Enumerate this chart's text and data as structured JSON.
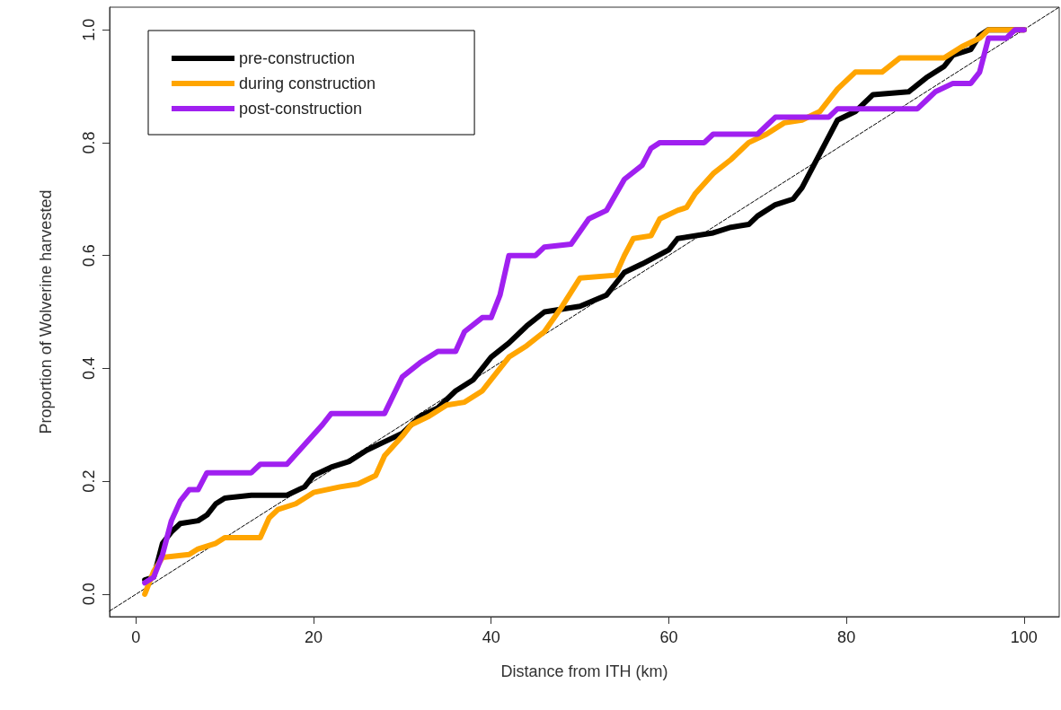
{
  "chart_data": {
    "type": "line",
    "xlabel": "Distance from ITH (km)",
    "ylabel": "Proportion of Wolverine harvested",
    "xlim": [
      -2.96,
      103.96
    ],
    "ylim": [
      -0.04,
      1.04
    ],
    "xticks": [
      0,
      20,
      40,
      60,
      80,
      100
    ],
    "yticks": [
      {
        "value": 0,
        "label": "0.0"
      },
      {
        "value": 0.2,
        "label": "0.2"
      },
      {
        "value": 0.4,
        "label": "0.4"
      },
      {
        "value": 0.6,
        "label": "0.6"
      },
      {
        "value": 0.8,
        "label": "0.8"
      },
      {
        "value": 1,
        "label": "1.0"
      }
    ],
    "grid": false,
    "legend": "top left",
    "marker": "none",
    "line_style": "solid",
    "series": [
      {
        "name": "pre-construction",
        "color": "#000000",
        "x": [
          1,
          2,
          3,
          4,
          5,
          7,
          8,
          9,
          10,
          13,
          17,
          19,
          20,
          22,
          24,
          26,
          28,
          30,
          32,
          34,
          36,
          38,
          40,
          42,
          44,
          46,
          50,
          53,
          55,
          57,
          60,
          61,
          65,
          67,
          69,
          70,
          72,
          74,
          75,
          77,
          79,
          81,
          83,
          87,
          89,
          91,
          92,
          94,
          95,
          96,
          100
        ],
        "values": [
          0.025,
          0.03,
          0.09,
          0.11,
          0.125,
          0.13,
          0.14,
          0.16,
          0.17,
          0.175,
          0.175,
          0.19,
          0.21,
          0.225,
          0.235,
          0.255,
          0.27,
          0.285,
          0.315,
          0.33,
          0.36,
          0.38,
          0.42,
          0.445,
          0.475,
          0.5,
          0.51,
          0.53,
          0.57,
          0.585,
          0.61,
          0.63,
          0.64,
          0.65,
          0.655,
          0.67,
          0.69,
          0.7,
          0.72,
          0.78,
          0.84,
          0.855,
          0.885,
          0.89,
          0.915,
          0.935,
          0.955,
          0.965,
          0.99,
          1.0,
          1.0
        ]
      },
      {
        "name": "during construction",
        "color": "#ffa500",
        "x": [
          1,
          2,
          3,
          6,
          7,
          9,
          10,
          14,
          15,
          16,
          18,
          20,
          23,
          25,
          27,
          28,
          30,
          31,
          33,
          35,
          37,
          39,
          40,
          42,
          44,
          46,
          48,
          50,
          54,
          55,
          56,
          58,
          59,
          61,
          62,
          63,
          65,
          67,
          69,
          71,
          73,
          75,
          77,
          79,
          81,
          84,
          86,
          91,
          93,
          95,
          96,
          100
        ],
        "values": [
          0.0,
          0.04,
          0.065,
          0.07,
          0.08,
          0.09,
          0.1,
          0.1,
          0.135,
          0.15,
          0.16,
          0.18,
          0.19,
          0.195,
          0.21,
          0.245,
          0.28,
          0.3,
          0.315,
          0.335,
          0.34,
          0.36,
          0.38,
          0.42,
          0.44,
          0.465,
          0.51,
          0.56,
          0.565,
          0.6,
          0.63,
          0.635,
          0.665,
          0.68,
          0.685,
          0.71,
          0.745,
          0.77,
          0.8,
          0.815,
          0.835,
          0.84,
          0.855,
          0.895,
          0.925,
          0.925,
          0.95,
          0.95,
          0.97,
          0.985,
          1.0,
          1.0
        ]
      },
      {
        "name": "post-construction",
        "color": "#a020f0",
        "x": [
          1,
          2,
          3,
          4,
          5,
          6,
          7,
          8,
          13,
          14,
          17,
          19,
          21,
          22,
          28,
          30,
          32,
          34,
          36,
          37,
          39,
          40,
          41,
          42,
          45,
          46,
          49,
          51,
          53,
          55,
          57,
          58,
          59,
          64,
          65,
          70,
          71,
          72,
          78,
          79,
          88,
          89,
          90,
          92,
          94,
          95,
          96,
          98,
          99,
          100
        ],
        "values": [
          0.02,
          0.03,
          0.07,
          0.13,
          0.165,
          0.185,
          0.185,
          0.215,
          0.215,
          0.23,
          0.23,
          0.265,
          0.3,
          0.32,
          0.32,
          0.385,
          0.41,
          0.43,
          0.43,
          0.465,
          0.49,
          0.49,
          0.53,
          0.6,
          0.6,
          0.615,
          0.62,
          0.665,
          0.68,
          0.735,
          0.76,
          0.79,
          0.8,
          0.8,
          0.815,
          0.815,
          0.83,
          0.845,
          0.845,
          0.86,
          0.86,
          0.875,
          0.89,
          0.905,
          0.905,
          0.925,
          0.985,
          0.985,
          1.0,
          1.0
        ]
      },
      {
        "color": "#000000",
        "line_style": "dashed",
        "x": [
          -2.96,
          103.96
        ],
        "values": [
          -0.03,
          1.04
        ]
      }
    ]
  }
}
